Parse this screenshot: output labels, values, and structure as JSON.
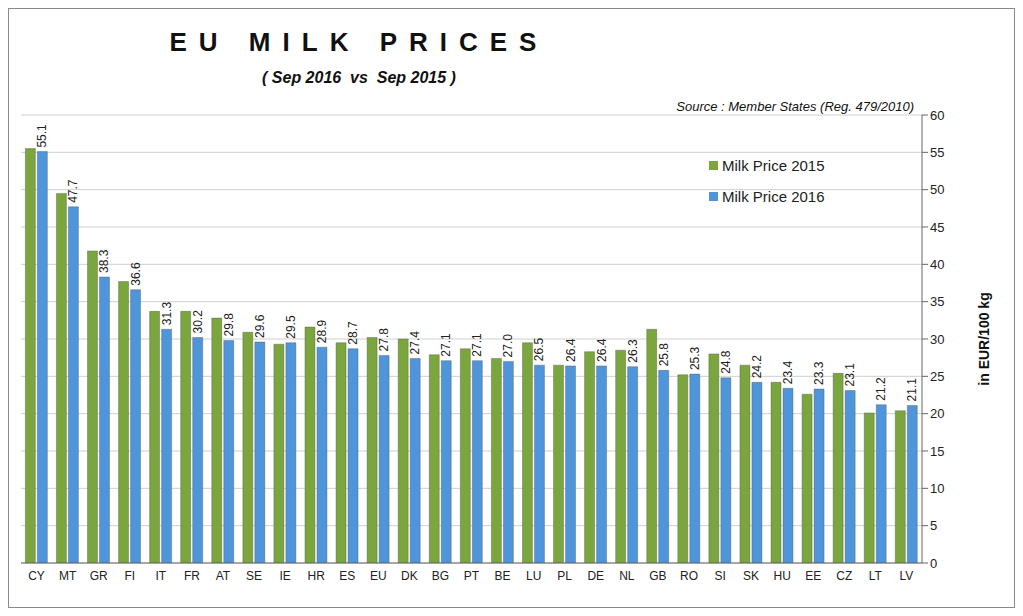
{
  "chart_data": {
    "type": "bar",
    "title": "EU MILK PRICES",
    "subtitle": "( Sep 2016  vs  Sep 2015 )",
    "annotation": "Source : Member States (Reg. 479/2010)",
    "y_label": "in EUR/100 kg",
    "categories": [
      "CY",
      "MT",
      "GR",
      "FI",
      "IT",
      "FR",
      "AT",
      "SE",
      "IE",
      "HR",
      "ES",
      "EU",
      "DK",
      "BG",
      "PT",
      "BE",
      "LU",
      "PL",
      "DE",
      "NL",
      "GB",
      "RO",
      "SI",
      "SK",
      "HU",
      "EE",
      "CZ",
      "LT",
      "LV"
    ],
    "series": [
      {
        "name": "Milk Price 2015",
        "color": "#7ba63e",
        "data_labels": false,
        "values": [
          55.5,
          49.5,
          41.8,
          37.7,
          33.7,
          33.7,
          32.8,
          30.9,
          29.3,
          31.6,
          29.5,
          30.2,
          30.0,
          27.9,
          28.7,
          27.4,
          29.5,
          26.5,
          28.3,
          28.5,
          31.3,
          25.2,
          28.0,
          26.5,
          24.2,
          22.6,
          25.4,
          20.1,
          20.4
        ]
      },
      {
        "name": "Milk Price 2016",
        "color": "#4f95dc",
        "data_labels": true,
        "values": [
          55.1,
          47.7,
          38.3,
          36.6,
          31.3,
          30.2,
          29.8,
          29.6,
          29.5,
          28.9,
          28.7,
          27.8,
          27.4,
          27.1,
          27.1,
          27.0,
          26.5,
          26.4,
          26.4,
          26.3,
          25.8,
          25.3,
          24.8,
          24.2,
          23.4,
          23.3,
          23.1,
          21.2,
          21.1
        ],
        "value_labels": [
          "55.1",
          "47.7",
          "38.3",
          "36.6",
          "31.3",
          "30.2",
          "29.8",
          "29.6",
          "29.5",
          "28.9",
          "28.7",
          "27.8",
          "27.4",
          "27.1",
          "27.1",
          "27.0",
          "26.5",
          "26.4",
          "26.4",
          "26.3",
          "25.8",
          "25.3",
          "24.8",
          "24.2",
          "23.4",
          "23.3",
          "23.1",
          "21.2",
          "21.1"
        ]
      }
    ],
    "ylim": [
      0,
      60
    ],
    "yticks": [
      0,
      5,
      10,
      15,
      20,
      25,
      30,
      35,
      40,
      45,
      50,
      55,
      60
    ],
    "grid": true,
    "legend": "upper right"
  }
}
